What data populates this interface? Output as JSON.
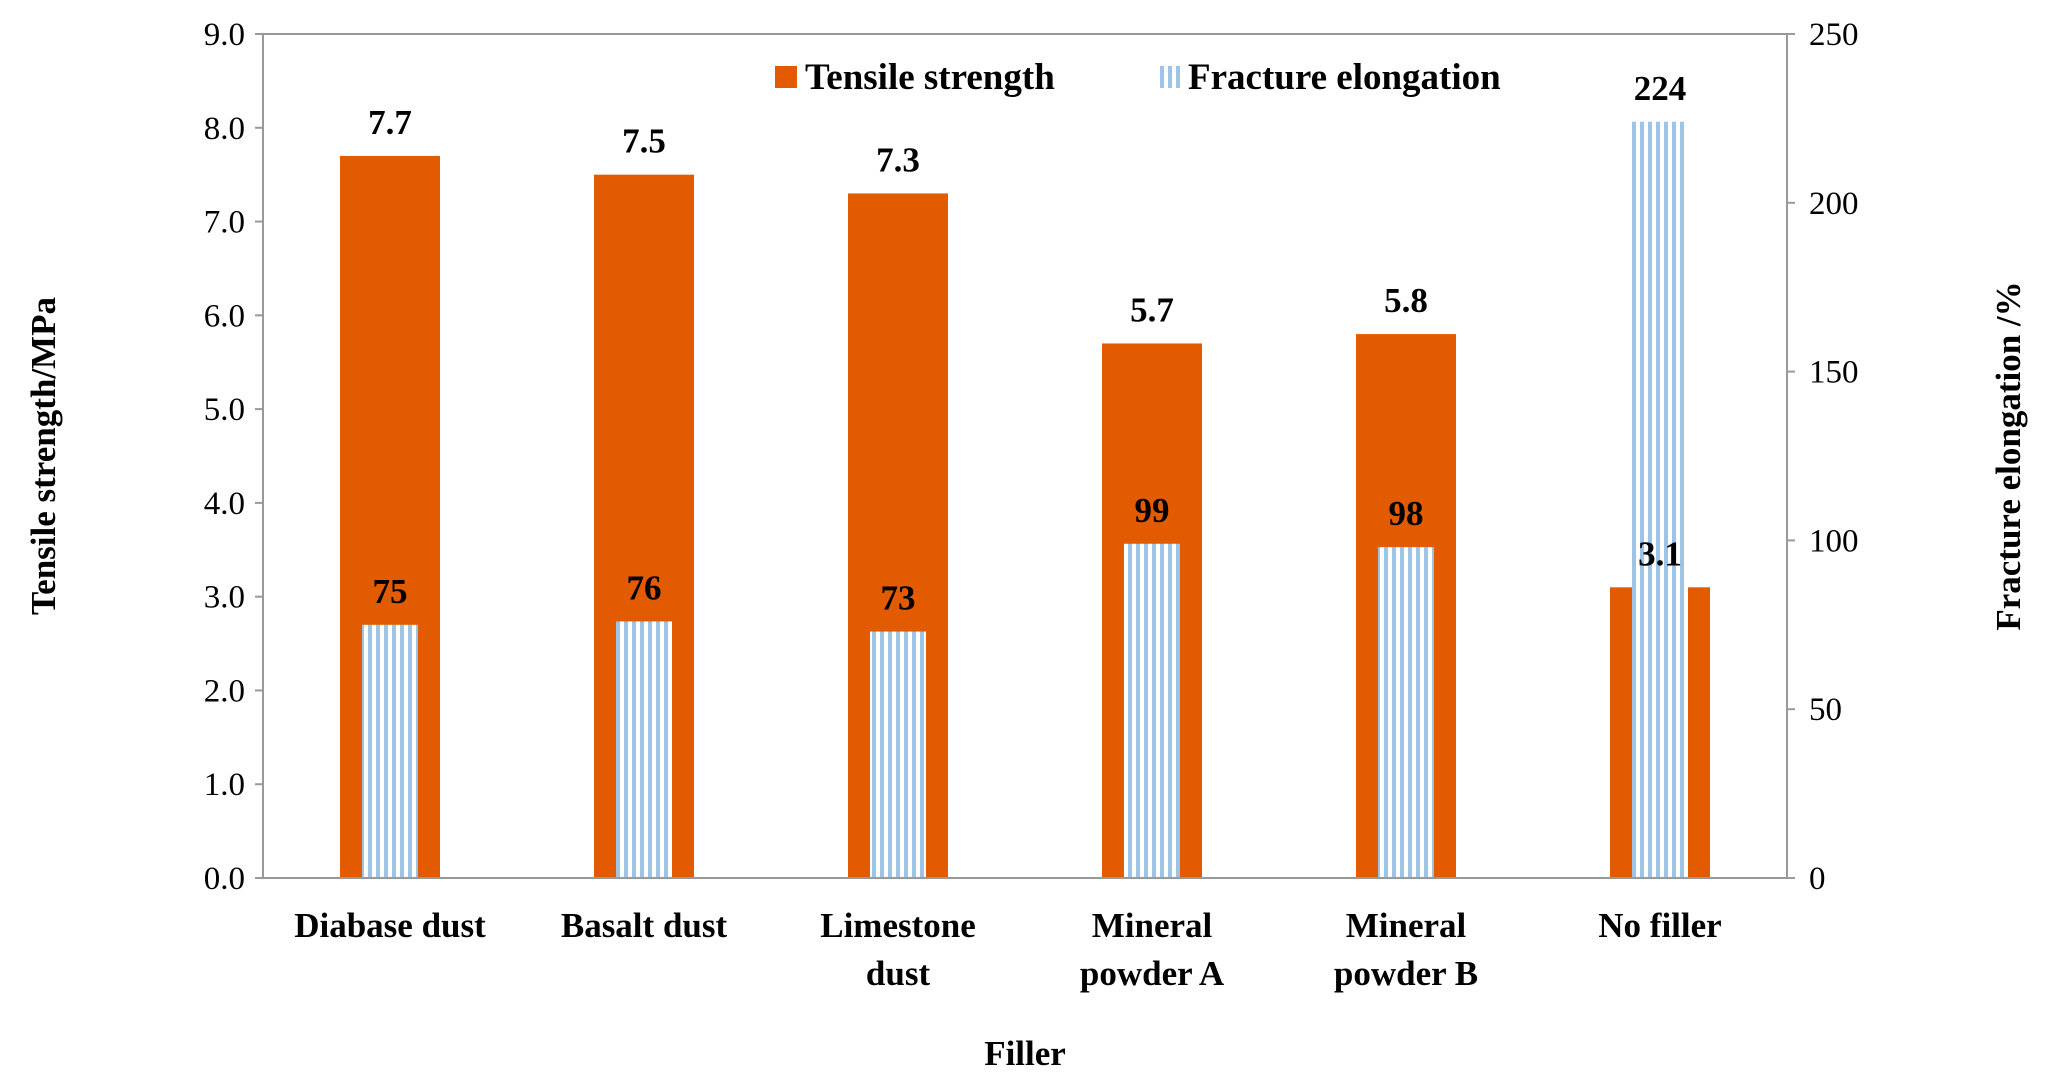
{
  "chart_data": {
    "type": "bar",
    "title": "",
    "categories": [
      [
        "Diabase dust"
      ],
      [
        "Basalt dust"
      ],
      [
        "Limestone",
        "dust"
      ],
      [
        "Mineral",
        "powder A"
      ],
      [
        "Mineral",
        "powder B"
      ],
      [
        "No filler"
      ]
    ],
    "series": [
      {
        "name": "Tensile strength",
        "axis": "left",
        "color": "#E35B00",
        "values": [
          7.7,
          7.5,
          7.3,
          5.7,
          5.8,
          3.1
        ],
        "labels": [
          "7.7",
          "7.5",
          "7.3",
          "5.7",
          "5.8",
          "3.1"
        ]
      },
      {
        "name": "Fracture elongation",
        "axis": "right",
        "color": "#9DC3E6",
        "pattern": "vertical-stripes",
        "values": [
          75,
          76,
          73,
          99,
          98,
          224
        ],
        "labels": [
          "75",
          "76",
          "73",
          "99",
          "98",
          "224"
        ]
      }
    ],
    "xlabel": "Filler",
    "ylabel": "Tensile strength/MPa",
    "y2label": "Fracture elongation /%",
    "ylim": [
      0,
      9
    ],
    "y2lim": [
      0,
      250
    ],
    "yticks": [
      "0.0",
      "1.0",
      "2.0",
      "3.0",
      "4.0",
      "5.0",
      "6.0",
      "7.0",
      "8.0",
      "9.0"
    ],
    "y2ticks": [
      "0",
      "50",
      "100",
      "150",
      "200",
      "250"
    ],
    "legend_position": "top-right",
    "grid": false
  }
}
